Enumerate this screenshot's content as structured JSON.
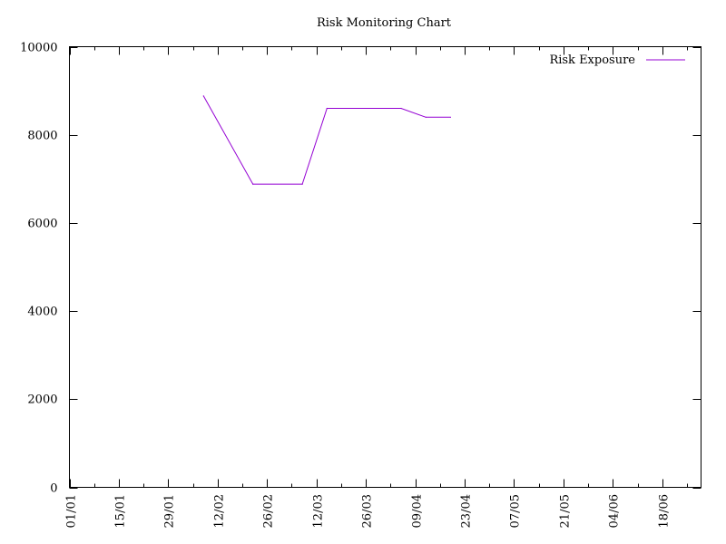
{
  "chart_data": {
    "type": "line",
    "title": "Risk Monitoring Chart",
    "xlabel": "",
    "ylabel": "",
    "ylim": [
      0,
      10000
    ],
    "xlim_days": [
      0,
      179
    ],
    "y_ticks": [
      {
        "label": "0",
        "value": 0
      },
      {
        "label": "2000",
        "value": 2000
      },
      {
        "label": "4000",
        "value": 4000
      },
      {
        "label": "6000",
        "value": 6000
      },
      {
        "label": "8000",
        "value": 8000
      },
      {
        "label": "10000",
        "value": 10000
      }
    ],
    "x_ticks": [
      {
        "label": "01/01",
        "day": 0
      },
      {
        "label": "15/01",
        "day": 14
      },
      {
        "label": "29/01",
        "day": 28
      },
      {
        "label": "12/02",
        "day": 42
      },
      {
        "label": "26/02",
        "day": 56
      },
      {
        "label": "12/03",
        "day": 70
      },
      {
        "label": "26/03",
        "day": 84
      },
      {
        "label": "09/04",
        "day": 98
      },
      {
        "label": "23/04",
        "day": 112
      },
      {
        "label": "07/05",
        "day": 126
      },
      {
        "label": "21/05",
        "day": 140
      },
      {
        "label": "04/06",
        "day": 154
      },
      {
        "label": "18/06",
        "day": 168
      }
    ],
    "x_minor_ticks_days": [
      7,
      21,
      35,
      49,
      63,
      77,
      91,
      105,
      119,
      133,
      147,
      161,
      175
    ],
    "grid": false,
    "legend_position": "top-right",
    "series": [
      {
        "name": "Risk Exposure",
        "color": "#9400d3",
        "points": [
          {
            "date": "08/02",
            "day": 38,
            "y": 8880
          },
          {
            "date": "22/02",
            "day": 52,
            "y": 6880
          },
          {
            "date": "08/03",
            "day": 66,
            "y": 6880
          },
          {
            "date": "15/03",
            "day": 73,
            "y": 8600
          },
          {
            "date": "05/04",
            "day": 94,
            "y": 8600
          },
          {
            "date": "12/04",
            "day": 101,
            "y": 8400
          },
          {
            "date": "19/04",
            "day": 108,
            "y": 8400
          }
        ]
      }
    ]
  }
}
